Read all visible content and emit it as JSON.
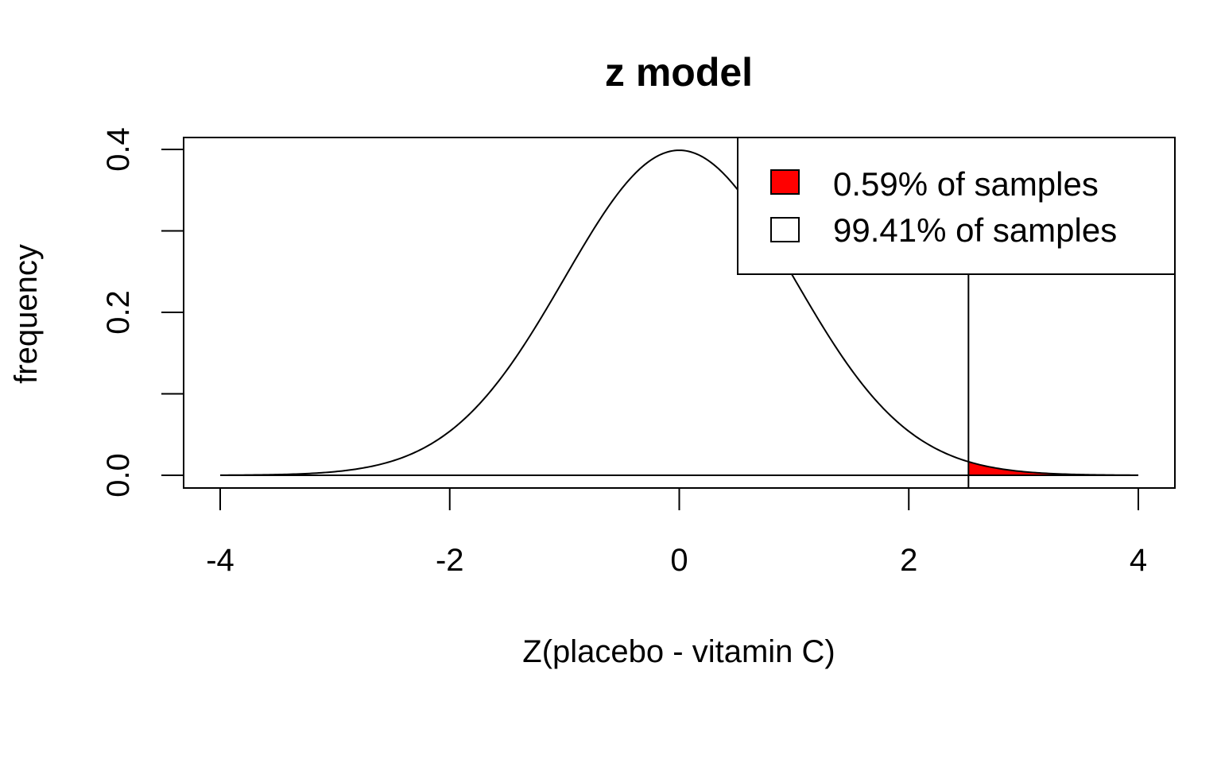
{
  "chart_data": {
    "type": "area",
    "title": "z model",
    "xlabel": "Z(placebo - vitamin C)",
    "ylabel": "frequency",
    "xlim": [
      -4,
      4
    ],
    "ylim": [
      0,
      0.4
    ],
    "x_ticks": [
      "-4",
      "-2",
      "0",
      "2",
      "4"
    ],
    "x_tick_values": [
      -4,
      -2,
      0,
      2,
      4
    ],
    "y_ticks": [
      "0.0",
      "0.2",
      "0.4"
    ],
    "y_tick_values": [
      0.0,
      0.2,
      0.4
    ],
    "y_minor_tick_values": [
      0.1,
      0.3
    ],
    "distribution": "standard normal density",
    "cutoff": 2.52,
    "shaded_region": "right tail (x > cutoff)",
    "shade_color": "#ff0000",
    "legend_position": "top-right",
    "legend": [
      {
        "label": "0.59% of samples",
        "fill": "#ff0000"
      },
      {
        "label": "99.41% of samples",
        "fill": "#ffffff"
      }
    ],
    "grid": false
  }
}
